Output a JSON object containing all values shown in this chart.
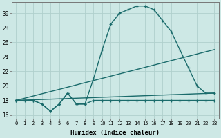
{
  "xlabel": "Humidex (Indice chaleur)",
  "background_color": "#cde8e5",
  "grid_color": "#b0d0cc",
  "line_color": "#1a6b6b",
  "xlim": [
    -0.5,
    23.5
  ],
  "ylim": [
    15.5,
    31.5
  ],
  "yticks": [
    16,
    18,
    20,
    22,
    24,
    26,
    28,
    30
  ],
  "xticks": [
    0,
    1,
    2,
    3,
    4,
    5,
    6,
    7,
    8,
    9,
    10,
    11,
    12,
    13,
    14,
    15,
    16,
    17,
    18,
    19,
    20,
    21,
    22,
    23
  ],
  "series": [
    {
      "x": [
        0,
        1,
        2,
        3,
        4,
        5,
        6,
        7,
        8,
        9,
        10,
        11,
        12,
        13,
        14,
        15,
        16,
        17,
        18,
        19,
        20,
        21,
        22,
        23
      ],
      "y": [
        18,
        18,
        18,
        17.5,
        16.5,
        17.5,
        19,
        17.5,
        17.5,
        18,
        18,
        18,
        18,
        18,
        18,
        18,
        18,
        18,
        18,
        18,
        18,
        18,
        18,
        18
      ],
      "marker": true
    },
    {
      "x": [
        0,
        23
      ],
      "y": [
        18,
        19
      ],
      "marker": false
    },
    {
      "x": [
        0,
        23
      ],
      "y": [
        18,
        25
      ],
      "marker": false
    },
    {
      "x": [
        0,
        2,
        3,
        4,
        5,
        6,
        7,
        8,
        9,
        10,
        11,
        12,
        13,
        14,
        15,
        16,
        17,
        18,
        19,
        20,
        21,
        22,
        23
      ],
      "y": [
        18,
        18,
        17.5,
        16.5,
        17.5,
        19,
        17.5,
        17.5,
        21,
        25,
        28.5,
        30,
        30.5,
        31,
        31,
        30.5,
        29,
        27.5,
        25,
        22.5,
        20,
        19,
        19
      ],
      "marker": true
    }
  ]
}
